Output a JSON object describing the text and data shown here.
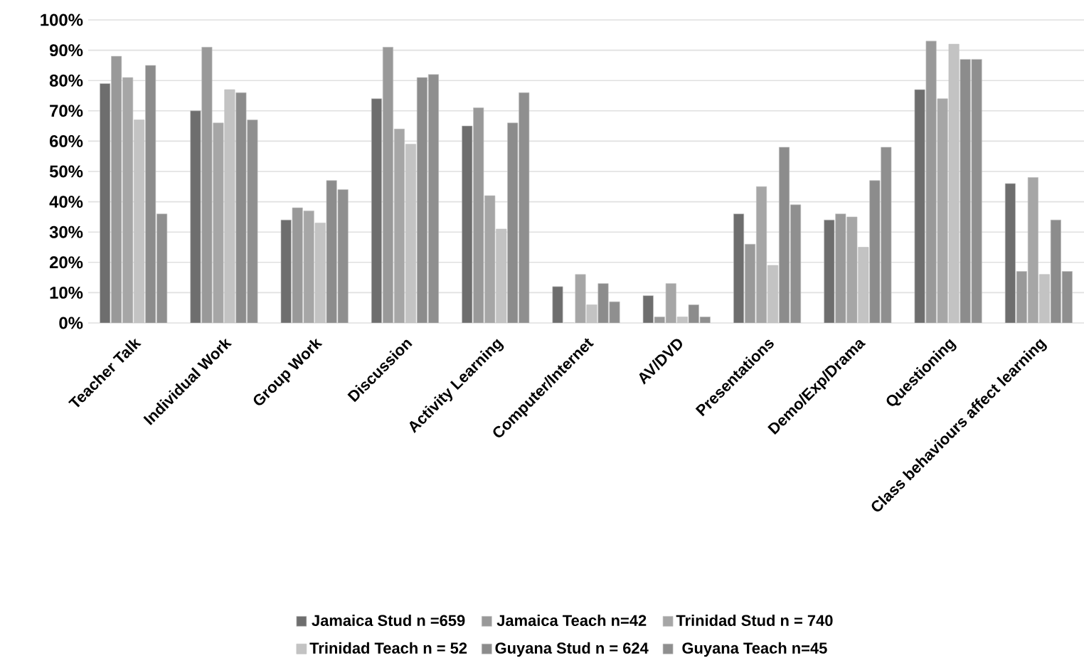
{
  "chart_data": {
    "type": "bar",
    "categories": [
      "Teacher Talk",
      "Individual Work",
      "Group Work",
      "Discussion",
      "Activity Learning",
      "Computer/Internet",
      "AV/DVD",
      "Presentations",
      "Demo/Exp/Drama",
      "Questioning",
      "Class behaviours affect learning"
    ],
    "series": [
      {
        "name": "Jamaica Stud n =659",
        "color": "#6e6e6e",
        "values": [
          79,
          70,
          34,
          74,
          65,
          12,
          9,
          36,
          34,
          77,
          46
        ]
      },
      {
        "name": "Jamaica Teach n=42",
        "color": "#999999",
        "values": [
          88,
          91,
          38,
          91,
          71,
          0,
          2,
          26,
          36,
          93,
          17
        ]
      },
      {
        "name": "Trinidad Stud n = 740",
        "color": "#a6a6a6",
        "values": [
          81,
          66,
          37,
          64,
          42,
          16,
          13,
          45,
          35,
          74,
          48
        ]
      },
      {
        "name": "Trinidad Teach n = 52",
        "color": "#c3c3c3",
        "values": [
          67,
          77,
          33,
          59,
          31,
          6,
          2,
          19,
          25,
          92,
          16
        ]
      },
      {
        "name": "Guyana Stud n = 624",
        "color": "#8c8c8c",
        "values": [
          85,
          76,
          47,
          81,
          66,
          13,
          6,
          58,
          47,
          87,
          34
        ]
      },
      {
        "name": "Guyana Teach n=45",
        "color": "#8f8f8f",
        "values": [
          36,
          67,
          44,
          82,
          76,
          7,
          2,
          39,
          58,
          87,
          17
        ]
      }
    ],
    "ylim": [
      0,
      100
    ],
    "yticks": [
      {
        "value": 0,
        "label": "0%"
      },
      {
        "value": 10,
        "label": "10%"
      },
      {
        "value": 20,
        "label": "20%"
      },
      {
        "value": 30,
        "label": "30%"
      },
      {
        "value": 40,
        "label": "40%"
      },
      {
        "value": 50,
        "label": "50%"
      },
      {
        "value": 60,
        "label": "60%"
      },
      {
        "value": 70,
        "label": "70%"
      },
      {
        "value": 80,
        "label": "80%"
      },
      {
        "value": 90,
        "label": "90%"
      },
      {
        "value": 100,
        "label": "100%"
      }
    ],
    "grid": "y",
    "legend": "bottom"
  }
}
